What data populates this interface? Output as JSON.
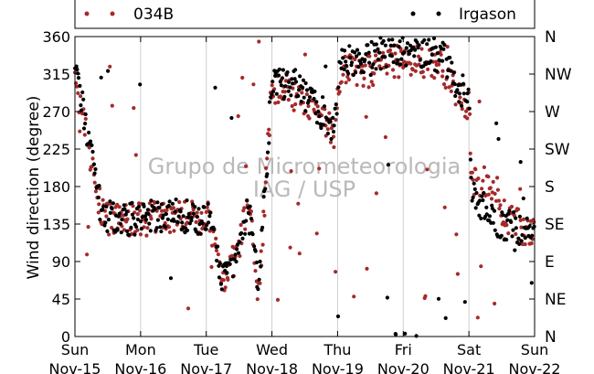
{
  "chart_data": {
    "type": "scatter",
    "ylabel": "Wind direction (degree)",
    "xlabel": "",
    "ylim": [
      0,
      360
    ],
    "yticks": [
      0,
      45,
      90,
      135,
      180,
      225,
      270,
      315,
      360
    ],
    "right_ticks": [
      {
        "value": 0,
        "label": "N"
      },
      {
        "value": 45,
        "label": "NE"
      },
      {
        "value": 90,
        "label": "E"
      },
      {
        "value": 135,
        "label": "SE"
      },
      {
        "value": 180,
        "label": "S"
      },
      {
        "value": 225,
        "label": "SW"
      },
      {
        "value": 270,
        "label": "W"
      },
      {
        "value": 315,
        "label": "NW"
      },
      {
        "value": 360,
        "label": "N"
      }
    ],
    "xlim": [
      "2015-11-15",
      "2015-11-22"
    ],
    "xticks": [
      {
        "day": "Sun",
        "date": "Nov-15"
      },
      {
        "day": "Mon",
        "date": "Nov-16"
      },
      {
        "day": "Tue",
        "date": "Nov-17"
      },
      {
        "day": "Wed",
        "date": "Nov-18"
      },
      {
        "day": "Thu",
        "date": "Nov-19"
      },
      {
        "day": "Fri",
        "date": "Nov-20"
      },
      {
        "day": "Sat",
        "date": "Nov-21"
      },
      {
        "day": "Sun",
        "date": "Nov-22"
      }
    ],
    "grid": "vertical",
    "legend_position": "top",
    "watermark": [
      "Grupo de Micrometeorologia",
      "IAG / USP"
    ],
    "series": [
      {
        "name": "034B",
        "color": "#a52a2a",
        "segments": [
          {
            "t": 0.0,
            "v": 300
          },
          {
            "t": 0.15,
            "v": 250
          },
          {
            "t": 0.3,
            "v": 185
          },
          {
            "t": 0.4,
            "v": 150
          },
          {
            "t": 0.55,
            "v": 140
          },
          {
            "t": 1.0,
            "v": 140
          },
          {
            "t": 1.5,
            "v": 145
          },
          {
            "t": 2.05,
            "v": 142
          },
          {
            "t": 2.25,
            "v": 70
          },
          {
            "t": 2.45,
            "v": 95
          },
          {
            "t": 2.65,
            "v": 160
          },
          {
            "t": 2.8,
            "v": 50
          },
          {
            "t": 3.0,
            "v": 300
          },
          {
            "t": 3.4,
            "v": 295
          },
          {
            "t": 3.75,
            "v": 265
          },
          {
            "t": 3.95,
            "v": 245
          },
          {
            "t": 4.05,
            "v": 325
          },
          {
            "t": 4.4,
            "v": 315
          },
          {
            "t": 4.8,
            "v": 330
          },
          {
            "t": 5.2,
            "v": 330
          },
          {
            "t": 5.6,
            "v": 325
          },
          {
            "t": 5.85,
            "v": 290
          },
          {
            "t": 6.0,
            "v": 275
          },
          {
            "t": 6.05,
            "v": 182
          },
          {
            "t": 6.4,
            "v": 182
          },
          {
            "t": 6.5,
            "v": 150
          },
          {
            "t": 6.8,
            "v": 130
          },
          {
            "t": 7.0,
            "v": 120
          }
        ]
      },
      {
        "name": "Irgason",
        "color": "#000000",
        "segments": [
          {
            "t": 0.0,
            "v": 330
          },
          {
            "t": 0.15,
            "v": 260
          },
          {
            "t": 0.3,
            "v": 190
          },
          {
            "t": 0.4,
            "v": 150
          },
          {
            "t": 0.55,
            "v": 142
          },
          {
            "t": 1.0,
            "v": 142
          },
          {
            "t": 1.5,
            "v": 147
          },
          {
            "t": 2.05,
            "v": 140
          },
          {
            "t": 2.25,
            "v": 65
          },
          {
            "t": 2.45,
            "v": 90
          },
          {
            "t": 2.65,
            "v": 165
          },
          {
            "t": 2.8,
            "v": 60
          },
          {
            "t": 3.0,
            "v": 305
          },
          {
            "t": 3.4,
            "v": 300
          },
          {
            "t": 3.75,
            "v": 270
          },
          {
            "t": 3.95,
            "v": 250
          },
          {
            "t": 4.05,
            "v": 335
          },
          {
            "t": 4.4,
            "v": 330
          },
          {
            "t": 4.8,
            "v": 345
          },
          {
            "t": 5.2,
            "v": 345
          },
          {
            "t": 5.6,
            "v": 335
          },
          {
            "t": 5.85,
            "v": 300
          },
          {
            "t": 6.0,
            "v": 285
          },
          {
            "t": 6.05,
            "v": 170
          },
          {
            "t": 6.4,
            "v": 140
          },
          {
            "t": 6.5,
            "v": 135
          },
          {
            "t": 6.8,
            "v": 130
          },
          {
            "t": 7.0,
            "v": 122
          }
        ]
      }
    ]
  }
}
